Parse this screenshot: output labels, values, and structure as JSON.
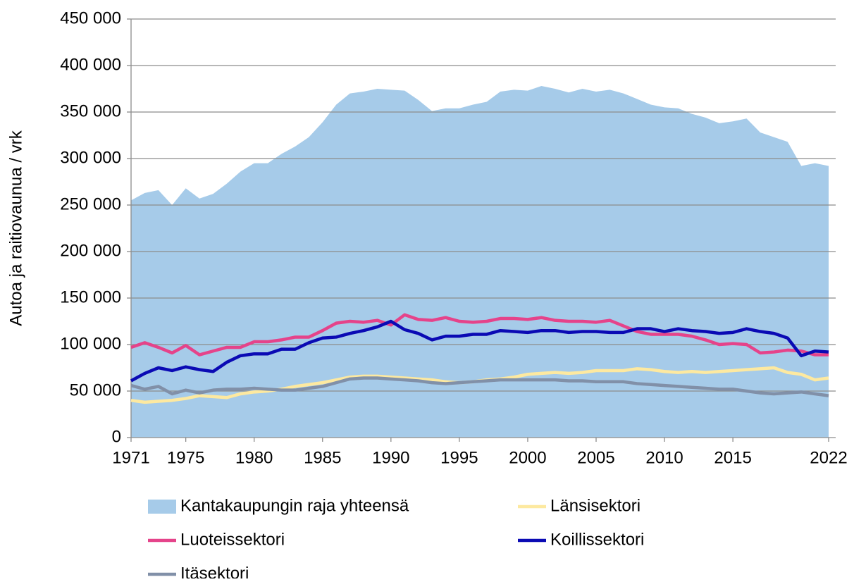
{
  "chart_data": {
    "type": "line",
    "y_label": "Autoa ja raitiovaunua / vrk",
    "x": [
      1971,
      1972,
      1973,
      1974,
      1975,
      1976,
      1977,
      1978,
      1979,
      1980,
      1981,
      1982,
      1983,
      1984,
      1985,
      1986,
      1987,
      1988,
      1989,
      1990,
      1991,
      1992,
      1993,
      1994,
      1995,
      1996,
      1997,
      1998,
      1999,
      2000,
      2001,
      2002,
      2003,
      2004,
      2005,
      2006,
      2007,
      2008,
      2009,
      2010,
      2011,
      2012,
      2013,
      2014,
      2015,
      2016,
      2017,
      2018,
      2019,
      2020,
      2021,
      2022
    ],
    "xlim": [
      1971,
      2022
    ],
    "xticks": [
      1971,
      1975,
      1980,
      1985,
      1990,
      1995,
      2000,
      2005,
      2010,
      2015,
      2022
    ],
    "ylim": [
      0,
      450000
    ],
    "yticks": [
      0,
      {
        "value": 50000,
        "label": "50 000"
      },
      {
        "value": 100000,
        "label": "100 000"
      },
      {
        "value": 150000,
        "label": "150 000"
      },
      {
        "value": 200000,
        "label": "200 000"
      },
      {
        "value": 250000,
        "label": "250 000"
      },
      {
        "value": 300000,
        "label": "300 000"
      },
      {
        "value": 350000,
        "label": "350 000"
      },
      {
        "value": 400000,
        "label": "400 000"
      },
      {
        "value": 450000,
        "label": "450 000"
      }
    ],
    "grid": true,
    "series": [
      {
        "name": "Kantakaupungin raja yhteensä",
        "style": "area",
        "color": "#a6cbe9",
        "values": [
          255000,
          263000,
          266000,
          250000,
          268000,
          257000,
          262000,
          273000,
          286000,
          295000,
          295000,
          305000,
          313000,
          323000,
          339000,
          358000,
          370000,
          372000,
          375000,
          374000,
          373000,
          363000,
          351000,
          354000,
          354000,
          358000,
          361000,
          372000,
          374000,
          373000,
          378000,
          375000,
          371000,
          375000,
          372000,
          374000,
          370000,
          364000,
          358000,
          355000,
          354000,
          348000,
          344000,
          338000,
          340000,
          343000,
          328000,
          323000,
          318000,
          292000,
          295000,
          292000
        ]
      },
      {
        "name": "Länsisektori",
        "style": "line",
        "color": "#fde9a0",
        "values": [
          40000,
          38000,
          39000,
          40000,
          42000,
          45000,
          44000,
          43000,
          47000,
          49000,
          50000,
          52000,
          55000,
          57000,
          59000,
          62000,
          65000,
          66000,
          66000,
          65000,
          64000,
          63000,
          62000,
          60000,
          59000,
          60000,
          62000,
          63000,
          65000,
          68000,
          69000,
          70000,
          69000,
          70000,
          72000,
          72000,
          72000,
          74000,
          73000,
          71000,
          70000,
          71000,
          70000,
          71000,
          72000,
          73000,
          74000,
          75000,
          70000,
          68000,
          62000,
          64000
        ]
      },
      {
        "name": "Luoteissektori",
        "style": "line",
        "color": "#e5438a",
        "values": [
          97000,
          102000,
          97000,
          91000,
          99000,
          89000,
          93000,
          97000,
          97000,
          103000,
          103000,
          105000,
          108000,
          108000,
          115000,
          123000,
          125000,
          124000,
          126000,
          121000,
          132000,
          127000,
          126000,
          129000,
          125000,
          124000,
          125000,
          128000,
          128000,
          127000,
          129000,
          126000,
          125000,
          125000,
          124000,
          126000,
          120000,
          114000,
          111000,
          111000,
          111000,
          109000,
          105000,
          100000,
          101000,
          100000,
          91000,
          92000,
          94000,
          93000,
          89000,
          89000
        ]
      },
      {
        "name": "Koillissektori",
        "style": "line",
        "color": "#0a0ab4",
        "values": [
          61000,
          69000,
          75000,
          72000,
          76000,
          73000,
          71000,
          81000,
          88000,
          90000,
          90000,
          95000,
          95000,
          102000,
          107000,
          108000,
          112000,
          115000,
          119000,
          125000,
          116000,
          112000,
          105000,
          109000,
          109000,
          111000,
          111000,
          115000,
          114000,
          113000,
          115000,
          115000,
          113000,
          114000,
          114000,
          113000,
          113000,
          117000,
          117000,
          114000,
          117000,
          115000,
          114000,
          112000,
          113000,
          117000,
          114000,
          112000,
          107000,
          88000,
          93000,
          92000
        ]
      },
      {
        "name": "Itäsektori",
        "style": "line",
        "color": "#8190a8",
        "values": [
          56000,
          52000,
          55000,
          47000,
          51000,
          48000,
          51000,
          52000,
          52000,
          53000,
          52000,
          51000,
          51000,
          53000,
          55000,
          59000,
          63000,
          64000,
          64000,
          63000,
          62000,
          61000,
          59000,
          58000,
          59000,
          60000,
          61000,
          62000,
          62000,
          62000,
          62000,
          62000,
          61000,
          61000,
          60000,
          60000,
          60000,
          58000,
          57000,
          56000,
          55000,
          54000,
          53000,
          52000,
          52000,
          50000,
          48000,
          47000,
          48000,
          49000,
          47000,
          45000
        ]
      }
    ]
  }
}
